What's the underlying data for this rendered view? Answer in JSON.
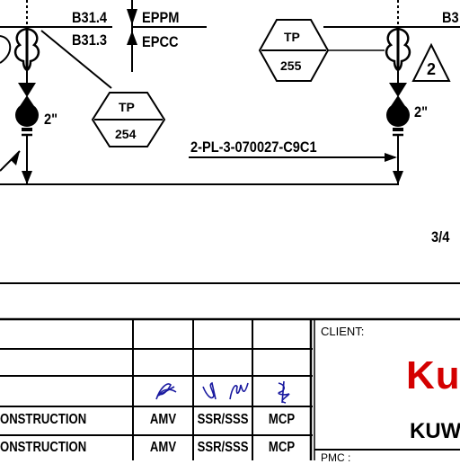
{
  "drawing": {
    "tag_b31_4": "B31.4",
    "tag_b31_3": "B31.3",
    "tag_eppm": "EPPM",
    "tag_epcc": "EPCC",
    "tag_b3_partial": "B3",
    "test_point_1": {
      "code": "TP",
      "number": "254"
    },
    "test_point_2": {
      "code": "TP",
      "number": "255"
    },
    "revision_mark": "2",
    "valve_size_1": "2\"",
    "valve_size_2": "2\"",
    "line_number": "2-PL-3-070027-C9C1",
    "size_partial": "3/4"
  },
  "title_block": {
    "rows": [
      {
        "description": "ONSTRUCTION",
        "by": "AMV",
        "checked": "SSR/SSS",
        "approved": "MCP"
      },
      {
        "description": "ONSTRUCTION",
        "by": "AMV",
        "checked": "SSR/SSS",
        "approved": "MCP"
      }
    ],
    "client_label": "CLIENT:",
    "client_name_partial": "Ku",
    "client_subtitle_partial": "KUW",
    "pmc_label_partial": "PMC :",
    "brand_color": "#d40000",
    "signature_color": "#1a1aa0"
  }
}
